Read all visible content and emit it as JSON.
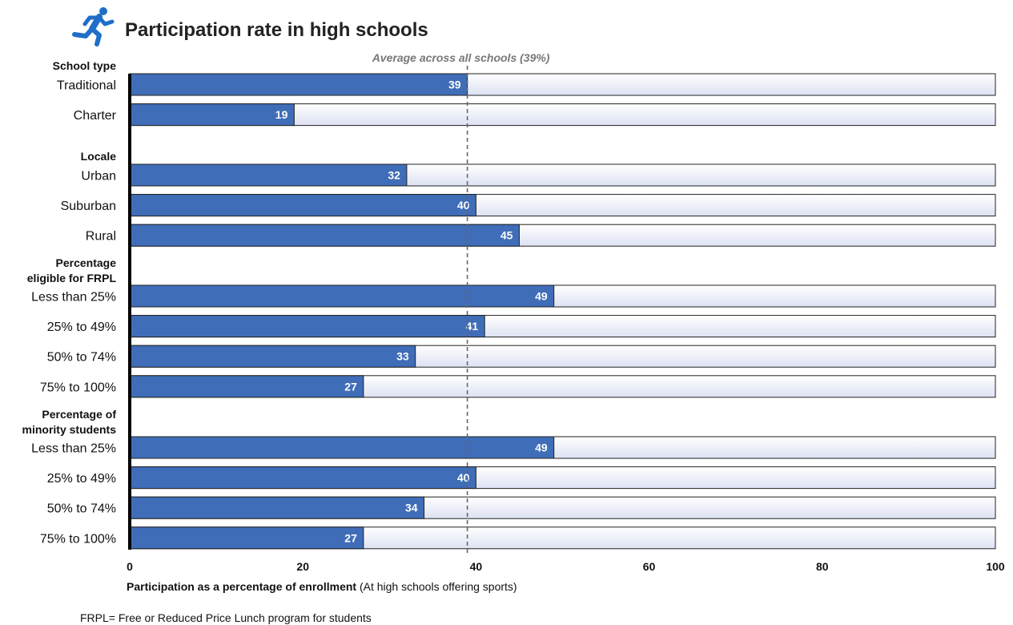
{
  "title": "Participation rate in high schools",
  "icon": "runner-icon",
  "colors": {
    "bar": "#3f6db8",
    "track_top": "#ffffff",
    "track_bottom": "#dde2f3",
    "reference": "#777777",
    "icon": "#1f6fc9"
  },
  "chart_data": {
    "type": "bar",
    "orientation": "horizontal",
    "xlabel": "Participation as a percentage of enrollment",
    "xlabel_note": "(At high schools offering sports)",
    "xlim": [
      0,
      100
    ],
    "xticks": [
      0,
      20,
      40,
      60,
      80,
      100
    ],
    "reference_line": {
      "value": 39,
      "label": "Average across all schools (39%)"
    },
    "groups": [
      {
        "heading": [
          "School type"
        ],
        "bars": [
          {
            "label": "Traditional",
            "value": 39
          },
          {
            "label": "Charter",
            "value": 19
          }
        ]
      },
      {
        "heading": [
          "Locale"
        ],
        "bars": [
          {
            "label": "Urban",
            "value": 32
          },
          {
            "label": "Suburban",
            "value": 40
          },
          {
            "label": "Rural",
            "value": 45
          }
        ]
      },
      {
        "heading": [
          "Percentage",
          "eligible for FRPL"
        ],
        "bars": [
          {
            "label": "Less than 25%",
            "value": 49
          },
          {
            "label": "25% to 49%",
            "value": 41
          },
          {
            "label": "50% to 74%",
            "value": 33
          },
          {
            "label": "75% to 100%",
            "value": 27
          }
        ]
      },
      {
        "heading": [
          "Percentage of",
          "minority students"
        ],
        "bars": [
          {
            "label": "Less than 25%",
            "value": 49
          },
          {
            "label": "25% to 49%",
            "value": 40
          },
          {
            "label": "50% to 74%",
            "value": 34
          },
          {
            "label": "75% to 100%",
            "value": 27
          }
        ]
      }
    ]
  },
  "footnote": "FRPL=  Free or Reduced Price Lunch program for students"
}
